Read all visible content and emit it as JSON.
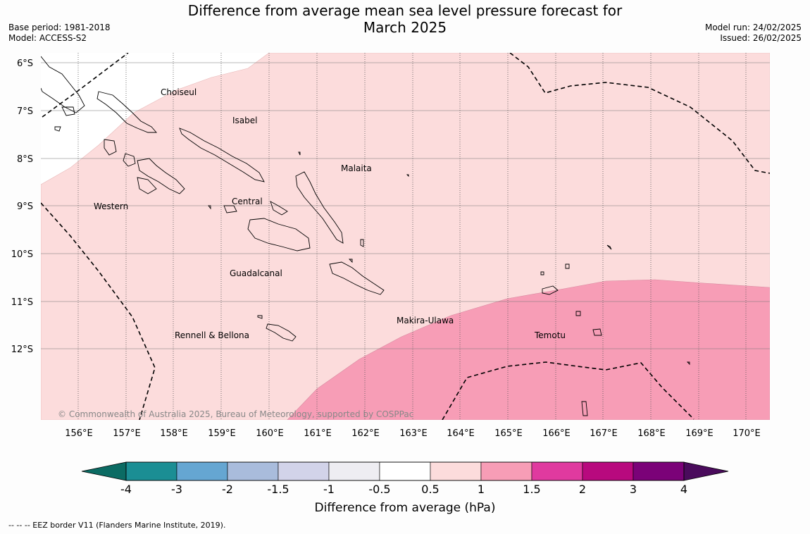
{
  "title": {
    "line1": "Difference from average mean sea level pressure forecast for",
    "line2": "March 2025"
  },
  "meta_left": {
    "base_period": "Base period: 1981-2018",
    "model": "Model: ACCESS-S2"
  },
  "meta_right": {
    "model_run": "Model run: 24/02/2025",
    "issued": "Issued: 26/02/2025"
  },
  "map": {
    "lat_labels": [
      "6°S",
      "7°S",
      "8°S",
      "9°S",
      "10°S",
      "11°S",
      "12°S"
    ],
    "lon_labels": [
      "156°E",
      "157°E",
      "158°E",
      "159°E",
      "160°E",
      "161°E",
      "162°E",
      "163°E",
      "164°E",
      "165°E",
      "166°E",
      "167°E",
      "168°E",
      "169°E",
      "170°E"
    ],
    "regions": [
      "Choiseul",
      "Isabel",
      "Malaita",
      "Western",
      "Central",
      "Guadalcanal",
      "Makira-Ulawa",
      "Rennell & Bellona",
      "Temotu"
    ],
    "copyright": "© Commonwealth of Australia 2025, Bureau of Meteorology, supported by COSPPac",
    "shading": {
      "light_pink_band": "0.5 to 1 hPa",
      "pink_band": "1 to 1.5 hPa"
    }
  },
  "colorbar": {
    "title": "Difference from average (hPa)",
    "tick_labels": [
      "-4",
      "-3",
      "-2",
      "-1.5",
      "-1",
      "-0.5",
      "0.5",
      "1",
      "1.5",
      "2",
      "3",
      "4"
    ],
    "colors": [
      "#0b6b63",
      "#1b8e94",
      "#65a6d2",
      "#a9bcdc",
      "#d2d3e9",
      "#eeedf2",
      "#ffffff",
      "#fcdcdc",
      "#f79db6",
      "#e03a9f",
      "#b8097e",
      "#7b0278",
      "#4a0b5c"
    ]
  },
  "footnote": "--  --  -- EEZ border V11 (Flanders Marine Institute, 2019)."
}
